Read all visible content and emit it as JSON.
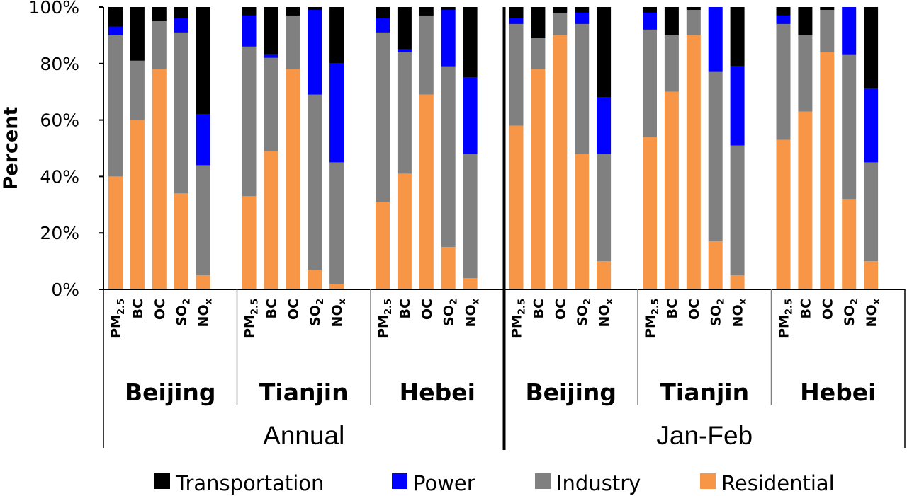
{
  "chart_data": {
    "type": "bar",
    "stacked": true,
    "ylabel": "Percent",
    "ylim": [
      0,
      100
    ],
    "yticks": [
      "0%",
      "20%",
      "40%",
      "60%",
      "80%",
      "100%"
    ],
    "categories": [
      "PM2.5",
      "BC",
      "OC",
      "SO2",
      "NOx"
    ],
    "category_labels": [
      {
        "main": "PM",
        "sub": "2.5"
      },
      {
        "main": "BC",
        "sub": ""
      },
      {
        "main": "OC",
        "sub": ""
      },
      {
        "main": "SO",
        "sub": "2"
      },
      {
        "main": "NO",
        "sub": "x"
      }
    ],
    "legend_placement": "bottom",
    "series": [
      {
        "name": "Transportation",
        "color": "#000000"
      },
      {
        "name": "Power",
        "color": "#0000ff"
      },
      {
        "name": "Industry",
        "color": "#808080"
      },
      {
        "name": "Residential",
        "color": "#f79646"
      }
    ],
    "periods": [
      {
        "name": "Annual",
        "regions": [
          {
            "name": "Beijing",
            "bars": [
              {
                "residential": 40,
                "industry": 50,
                "power": 3,
                "transportation": 7
              },
              {
                "residential": 60,
                "industry": 21,
                "power": 0,
                "transportation": 19
              },
              {
                "residential": 78,
                "industry": 17,
                "power": 0,
                "transportation": 5
              },
              {
                "residential": 34,
                "industry": 57,
                "power": 5,
                "transportation": 4
              },
              {
                "residential": 5,
                "industry": 39,
                "power": 18,
                "transportation": 38
              }
            ]
          },
          {
            "name": "Tianjin",
            "bars": [
              {
                "residential": 33,
                "industry": 53,
                "power": 11,
                "transportation": 3
              },
              {
                "residential": 49,
                "industry": 33,
                "power": 1,
                "transportation": 17
              },
              {
                "residential": 78,
                "industry": 19,
                "power": 0,
                "transportation": 3
              },
              {
                "residential": 7,
                "industry": 62,
                "power": 30,
                "transportation": 1
              },
              {
                "residential": 2,
                "industry": 43,
                "power": 35,
                "transportation": 20
              }
            ]
          },
          {
            "name": "Hebei",
            "bars": [
              {
                "residential": 31,
                "industry": 60,
                "power": 5,
                "transportation": 4
              },
              {
                "residential": 41,
                "industry": 43,
                "power": 1,
                "transportation": 15
              },
              {
                "residential": 69,
                "industry": 28,
                "power": 0,
                "transportation": 3
              },
              {
                "residential": 15,
                "industry": 64,
                "power": 20,
                "transportation": 1
              },
              {
                "residential": 4,
                "industry": 44,
                "power": 27,
                "transportation": 25
              }
            ]
          }
        ]
      },
      {
        "name": "Jan-Feb",
        "regions": [
          {
            "name": "Beijing",
            "bars": [
              {
                "residential": 58,
                "industry": 36,
                "power": 2,
                "transportation": 4
              },
              {
                "residential": 78,
                "industry": 11,
                "power": 0,
                "transportation": 11
              },
              {
                "residential": 90,
                "industry": 8,
                "power": 0,
                "transportation": 2
              },
              {
                "residential": 48,
                "industry": 46,
                "power": 4,
                "transportation": 2
              },
              {
                "residential": 10,
                "industry": 38,
                "power": 20,
                "transportation": 32
              }
            ]
          },
          {
            "name": "Tianjin",
            "bars": [
              {
                "residential": 54,
                "industry": 38,
                "power": 6,
                "transportation": 2
              },
              {
                "residential": 70,
                "industry": 20,
                "power": 0,
                "transportation": 10
              },
              {
                "residential": 90,
                "industry": 9,
                "power": 0,
                "transportation": 1
              },
              {
                "residential": 17,
                "industry": 60,
                "power": 23,
                "transportation": 0
              },
              {
                "residential": 5,
                "industry": 46,
                "power": 28,
                "transportation": 21
              }
            ]
          },
          {
            "name": "Hebei",
            "bars": [
              {
                "residential": 53,
                "industry": 41,
                "power": 3,
                "transportation": 3
              },
              {
                "residential": 63,
                "industry": 27,
                "power": 0,
                "transportation": 10
              },
              {
                "residential": 84,
                "industry": 15,
                "power": 0,
                "transportation": 1
              },
              {
                "residential": 32,
                "industry": 51,
                "power": 17,
                "transportation": 0
              },
              {
                "residential": 10,
                "industry": 35,
                "power": 26,
                "transportation": 29
              }
            ]
          }
        ]
      }
    ]
  }
}
